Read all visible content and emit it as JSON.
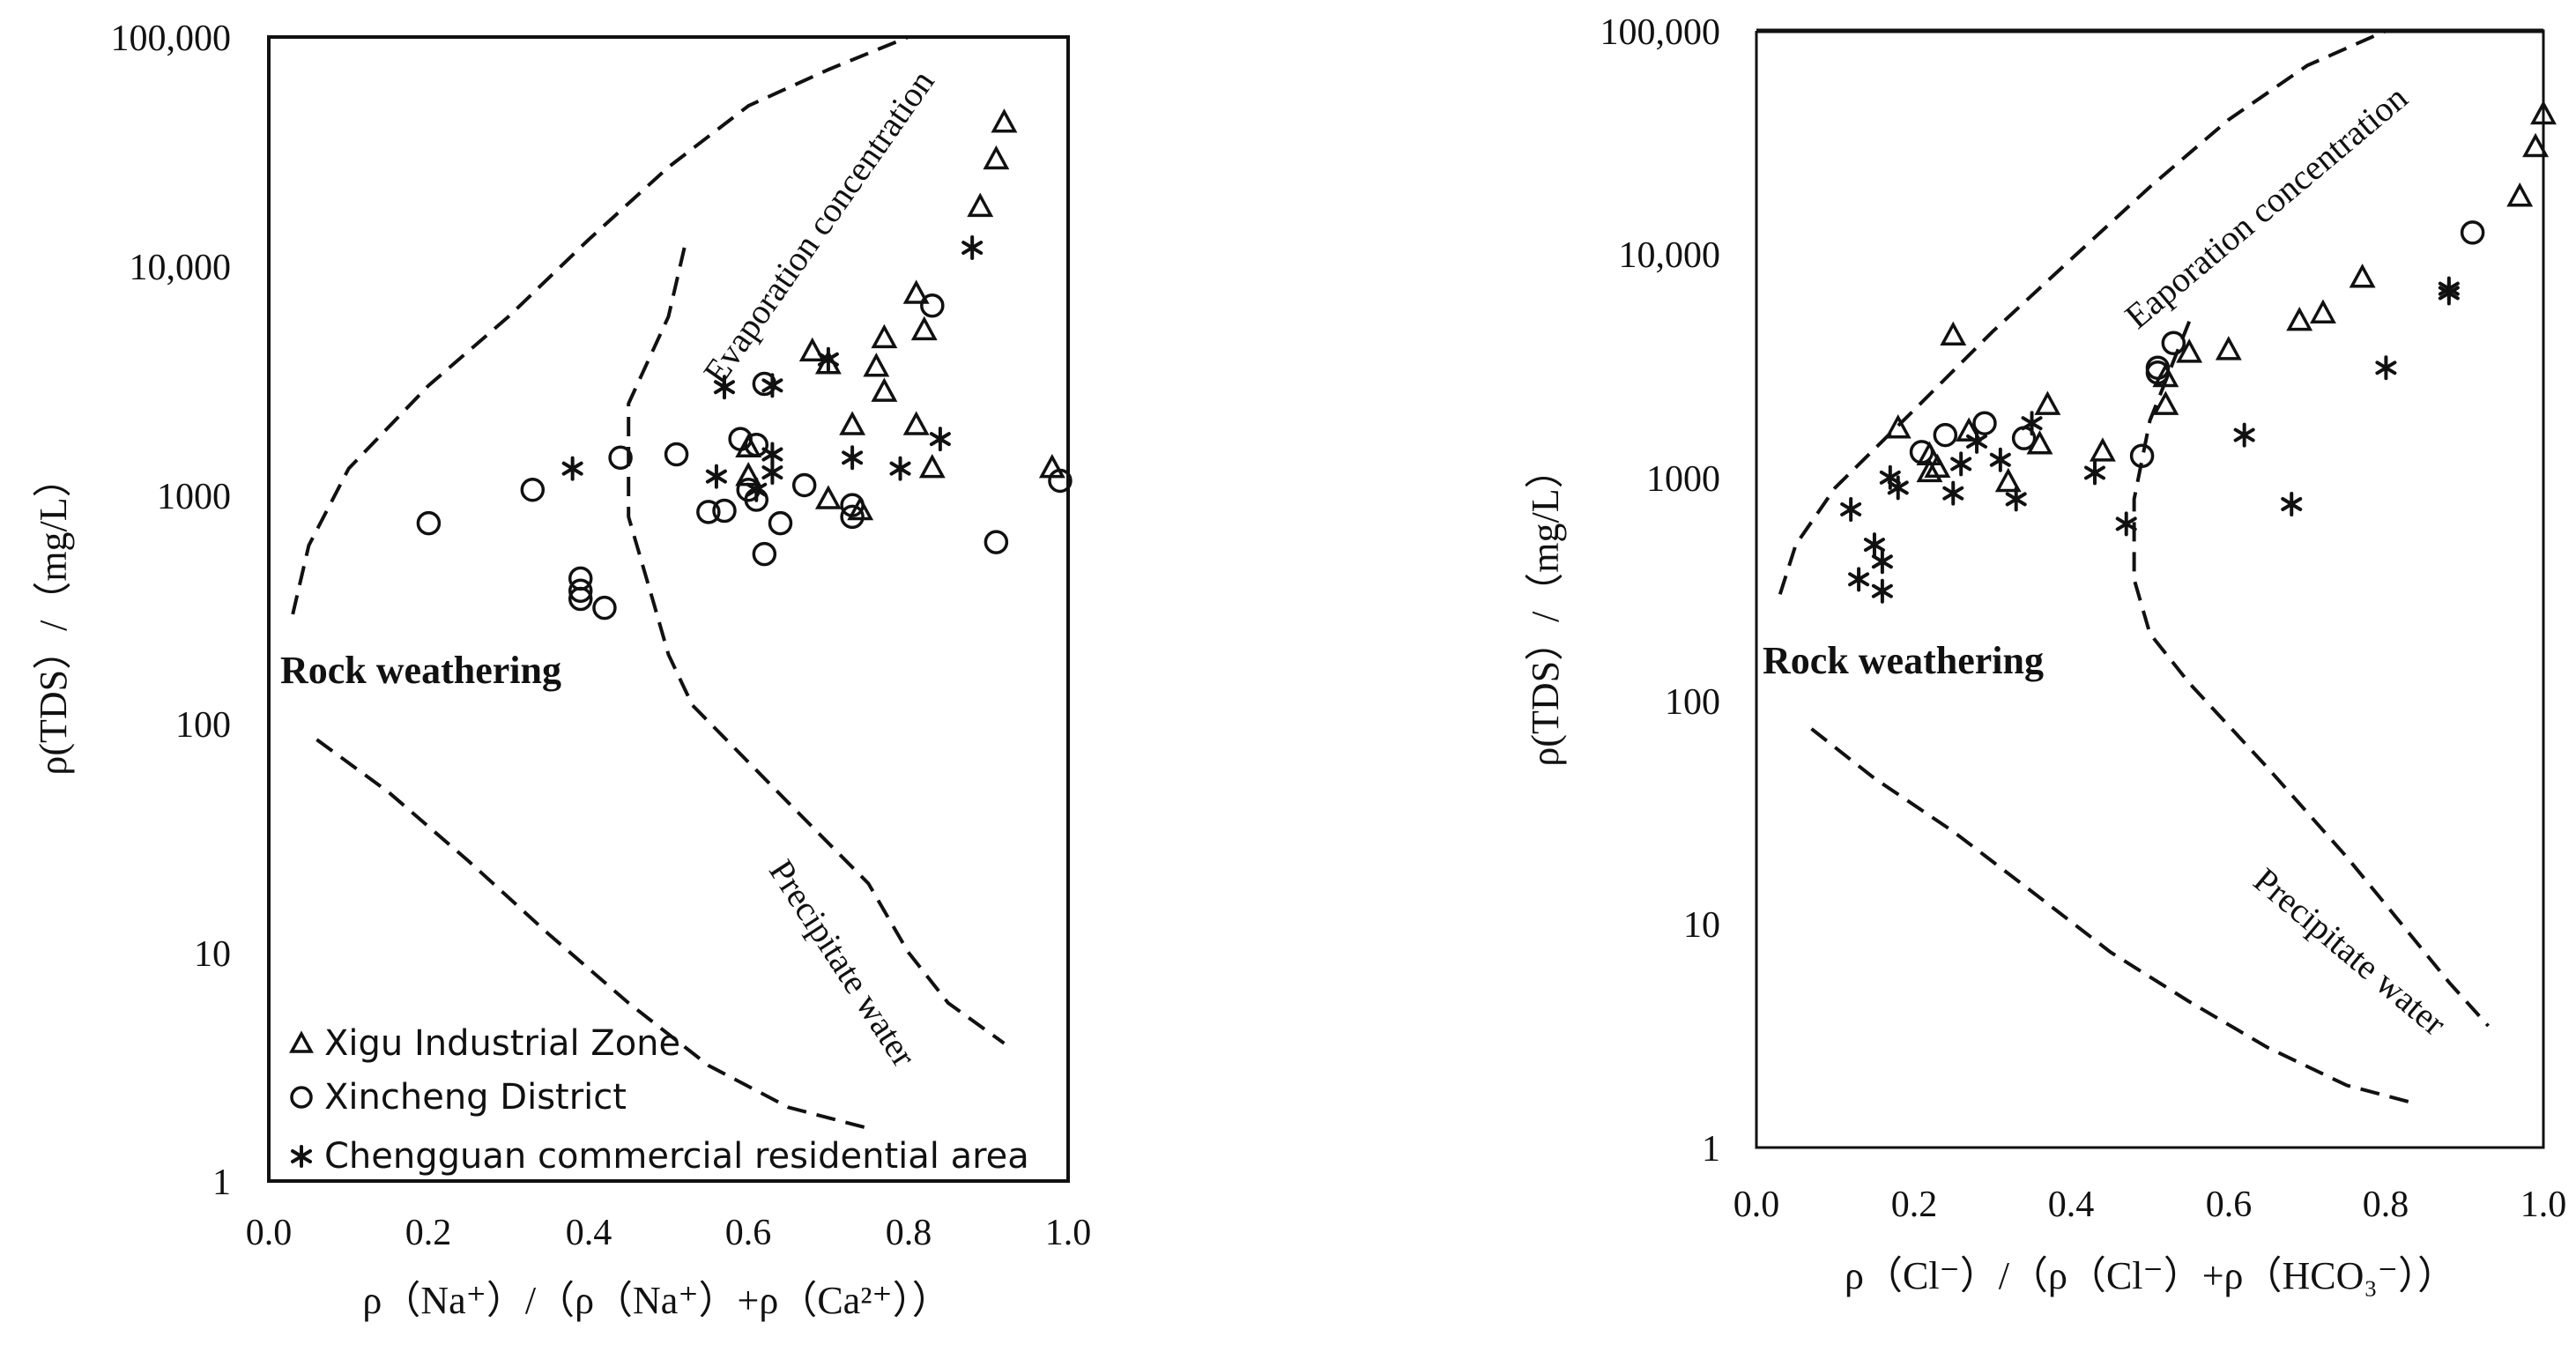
{
  "chart_data": [
    {
      "type": "scatter",
      "title": "",
      "xlabel": "ρ（Na⁺）/（ρ（Na⁺）+ρ（Ca²⁺））",
      "ylabel": "ρ(TDS）/（mg/L）",
      "xlim": [
        0,
        1
      ],
      "ylim": [
        1,
        100000
      ],
      "yscale": "log",
      "x_ticks": [
        "0.0",
        "0.2",
        "0.4",
        "0.6",
        "0.8",
        "1.0"
      ],
      "y_ticks": [
        "1",
        "10",
        "100",
        "1000",
        "10,000",
        "100,000"
      ],
      "annotations": {
        "evaporation": "Evaporation concentration",
        "rock": "Rock weathering",
        "precipitate": "Precipitate water"
      },
      "legend": [
        {
          "name": "Xigu Industrial Zone",
          "marker": "triangle"
        },
        {
          "name": "Xincheng District",
          "marker": "circle"
        },
        {
          "name": "Chengguan commercial residential area",
          "marker": "asterisk"
        }
      ],
      "boundaries": {
        "upper": [
          [
            0.03,
            300
          ],
          [
            0.05,
            600
          ],
          [
            0.1,
            1300
          ],
          [
            0.2,
            3000
          ],
          [
            0.3,
            6000
          ],
          [
            0.4,
            13000
          ],
          [
            0.5,
            27000
          ],
          [
            0.6,
            50000
          ],
          [
            0.7,
            72000
          ],
          [
            0.8,
            100000
          ]
        ],
        "middle": [
          [
            0.52,
            12000
          ],
          [
            0.5,
            6000
          ],
          [
            0.45,
            2500
          ],
          [
            0.45,
            800
          ],
          [
            0.48,
            350
          ],
          [
            0.5,
            200
          ],
          [
            0.53,
            120
          ],
          [
            0.65,
            45
          ],
          [
            0.75,
            20
          ],
          [
            0.8,
            10
          ],
          [
            0.85,
            6
          ],
          [
            0.92,
            4
          ]
        ],
        "lower": [
          [
            0.06,
            85
          ],
          [
            0.15,
            50
          ],
          [
            0.25,
            25
          ],
          [
            0.35,
            12
          ],
          [
            0.45,
            6
          ],
          [
            0.55,
            3.2
          ],
          [
            0.65,
            2.1
          ],
          [
            0.75,
            1.7
          ]
        ]
      },
      "series": [
        {
          "name": "Xigu Industrial Zone",
          "marker": "triangle",
          "points": [
            [
              0.92,
              42000
            ],
            [
              0.91,
              29000
            ],
            [
              0.89,
              18000
            ],
            [
              0.81,
              7500
            ],
            [
              0.82,
              5200
            ],
            [
              0.77,
              4800
            ],
            [
              0.76,
              3600
            ],
            [
              0.77,
              2800
            ],
            [
              0.68,
              4200
            ],
            [
              0.7,
              3700
            ],
            [
              0.73,
              2000
            ],
            [
              0.81,
              2000
            ],
            [
              0.83,
              1300
            ],
            [
              0.7,
              950
            ],
            [
              0.74,
              850
            ],
            [
              0.6,
              1600
            ],
            [
              0.6,
              1200
            ],
            [
              0.98,
              1300
            ]
          ]
        },
        {
          "name": "Xincheng District",
          "marker": "circle",
          "points": [
            [
              0.2,
              750
            ],
            [
              0.33,
              1050
            ],
            [
              0.44,
              1450
            ],
            [
              0.51,
              1500
            ],
            [
              0.39,
              430
            ],
            [
              0.39,
              380
            ],
            [
              0.39,
              350
            ],
            [
              0.42,
              320
            ],
            [
              0.59,
              1750
            ],
            [
              0.61,
              1650
            ],
            [
              0.62,
              3050
            ],
            [
              0.67,
              1100
            ],
            [
              0.6,
              1050
            ],
            [
              0.61,
              950
            ],
            [
              0.55,
              840
            ],
            [
              0.57,
              850
            ],
            [
              0.64,
              750
            ],
            [
              0.73,
              900
            ],
            [
              0.73,
              800
            ],
            [
              0.83,
              6700
            ],
            [
              0.62,
              550
            ],
            [
              0.91,
              620
            ],
            [
              0.99,
              1150
            ]
          ]
        },
        {
          "name": "Chengguan commercial residential area",
          "marker": "asterisk",
          "points": [
            [
              0.88,
              12000
            ],
            [
              0.7,
              3900
            ],
            [
              0.57,
              2950
            ],
            [
              0.63,
              3000
            ],
            [
              0.38,
              1300
            ],
            [
              0.56,
              1200
            ],
            [
              0.63,
              1500
            ],
            [
              0.63,
              1250
            ],
            [
              0.73,
              1450
            ],
            [
              0.79,
              1300
            ],
            [
              0.84,
              1750
            ],
            [
              0.61,
              1050
            ]
          ]
        }
      ]
    },
    {
      "type": "scatter",
      "title": "",
      "xlabel": "ρ（Cl⁻）/（ρ（Cl⁻）+ρ（HCO₃⁻））",
      "ylabel": "ρ(TDS）/（mg/L）",
      "xlim": [
        0,
        1
      ],
      "ylim": [
        1,
        100000
      ],
      "yscale": "log",
      "x_ticks": [
        "0.0",
        "0.2",
        "0.4",
        "0.6",
        "0.8",
        "1.0"
      ],
      "y_ticks": [
        "1",
        "10",
        "100",
        "1000",
        "10,000",
        "100,000"
      ],
      "annotations": {
        "evaporation": "Eaporation concentration",
        "rock": "Rock weathering",
        "precipitate": "Precipitate water"
      },
      "boundaries": {
        "upper": [
          [
            0.03,
            300
          ],
          [
            0.05,
            500
          ],
          [
            0.1,
            900
          ],
          [
            0.2,
            2000
          ],
          [
            0.3,
            4500
          ],
          [
            0.4,
            9500
          ],
          [
            0.5,
            20000
          ],
          [
            0.6,
            40000
          ],
          [
            0.7,
            70000
          ],
          [
            0.8,
            100000
          ]
        ],
        "middle": [
          [
            0.55,
            5000
          ],
          [
            0.5,
            1800
          ],
          [
            0.48,
            800
          ],
          [
            0.48,
            350
          ],
          [
            0.5,
            200
          ],
          [
            0.55,
            120
          ],
          [
            0.65,
            50
          ],
          [
            0.75,
            20
          ],
          [
            0.82,
            10
          ],
          [
            0.88,
            5.5
          ],
          [
            0.93,
            3.5
          ]
        ],
        "lower": [
          [
            0.07,
            75
          ],
          [
            0.15,
            45
          ],
          [
            0.25,
            26
          ],
          [
            0.35,
            14
          ],
          [
            0.45,
            7.5
          ],
          [
            0.55,
            4.5
          ],
          [
            0.65,
            2.8
          ],
          [
            0.75,
            1.9
          ],
          [
            0.83,
            1.6
          ]
        ]
      },
      "series": [
        {
          "name": "Xigu Industrial Zone",
          "marker": "triangle",
          "points": [
            [
              1.0,
              42000
            ],
            [
              0.99,
              30000
            ],
            [
              0.97,
              18000
            ],
            [
              0.77,
              7800
            ],
            [
              0.72,
              5400
            ],
            [
              0.69,
              5000
            ],
            [
              0.6,
              3700
            ],
            [
              0.55,
              3600
            ],
            [
              0.52,
              2800
            ],
            [
              0.52,
              2100
            ],
            [
              0.25,
              4300
            ],
            [
              0.18,
              1650
            ],
            [
              0.22,
              1250
            ],
            [
              0.22,
              1050
            ],
            [
              0.23,
              1100
            ],
            [
              0.27,
              1600
            ],
            [
              0.37,
              2100
            ],
            [
              0.36,
              1400
            ],
            [
              0.44,
              1300
            ],
            [
              0.32,
              950
            ]
          ]
        },
        {
          "name": "Xincheng District",
          "marker": "circle",
          "points": [
            [
              0.91,
              12500
            ],
            [
              0.53,
              4000
            ],
            [
              0.51,
              3100
            ],
            [
              0.51,
              2950
            ],
            [
              0.29,
              1750
            ],
            [
              0.24,
              1550
            ],
            [
              0.21,
              1300
            ],
            [
              0.34,
              1500
            ],
            [
              0.49,
              1250
            ]
          ]
        },
        {
          "name": "Chengguan commercial residential area",
          "marker": "asterisk",
          "points": [
            [
              0.88,
              7000
            ],
            [
              0.88,
              6700
            ],
            [
              0.8,
              3100
            ],
            [
              0.62,
              1550
            ],
            [
              0.68,
              760
            ],
            [
              0.47,
              620
            ],
            [
              0.43,
              1050
            ],
            [
              0.31,
              1200
            ],
            [
              0.33,
              800
            ],
            [
              0.25,
              850
            ],
            [
              0.28,
              1450
            ],
            [
              0.18,
              900
            ],
            [
              0.17,
              1000
            ],
            [
              0.12,
              720
            ],
            [
              0.15,
              500
            ],
            [
              0.13,
              350
            ],
            [
              0.16,
              420
            ],
            [
              0.16,
              310
            ],
            [
              0.35,
              1750
            ],
            [
              0.26,
              1150
            ]
          ]
        }
      ]
    }
  ]
}
